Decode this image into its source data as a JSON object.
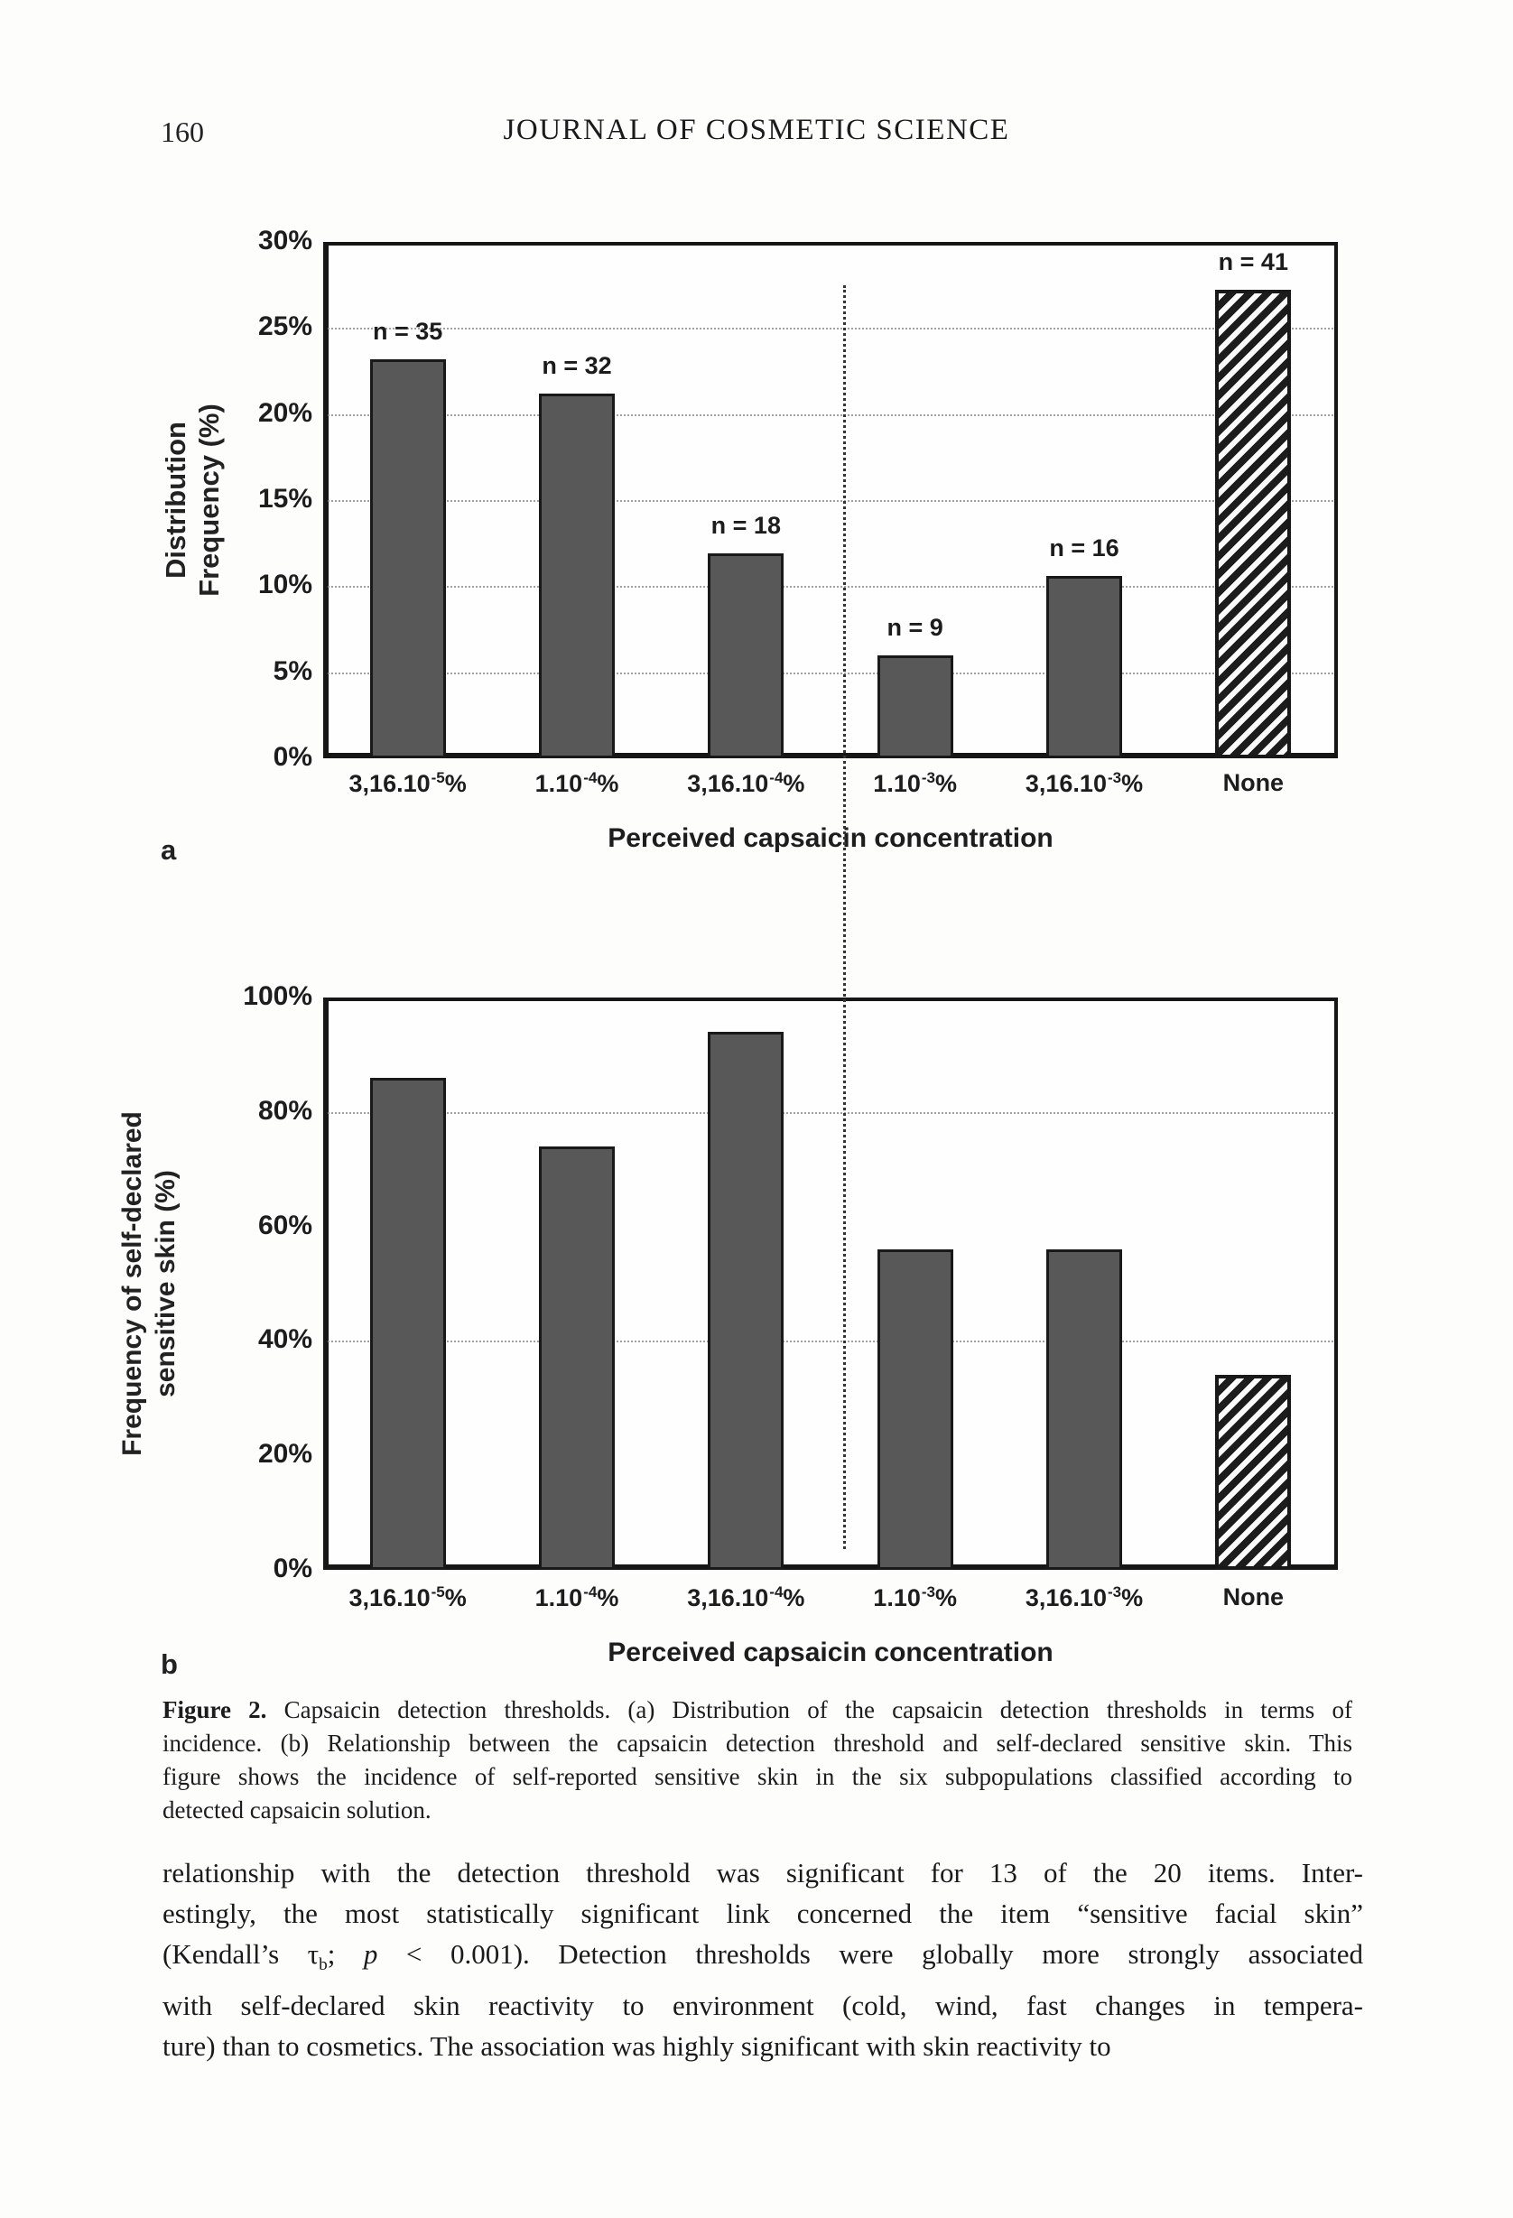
{
  "page": {
    "number": "160",
    "journal_title": "JOURNAL OF COSMETIC SCIENCE"
  },
  "chart_data": [
    {
      "type": "bar",
      "panel_label": "a",
      "ylabel_lines": [
        "Distribution",
        "Frequency (%)"
      ],
      "xlabel": "Perceived capsaicin concentration",
      "ylim": [
        0,
        30
      ],
      "yticks": [
        {
          "v": 30,
          "t": "30%"
        },
        {
          "v": 25,
          "t": "25%"
        },
        {
          "v": 20,
          "t": "20%"
        },
        {
          "v": 15,
          "t": "15%"
        },
        {
          "v": 10,
          "t": "10%"
        },
        {
          "v": 5,
          "t": "5%"
        },
        {
          "v": 0,
          "t": "0%"
        }
      ],
      "gridlines": [
        25,
        20,
        15,
        10,
        5
      ],
      "categories": [
        {
          "base": "3,16.10",
          "sup": "-5",
          "suffix": "%"
        },
        {
          "base": "1.10",
          "sup": "-4",
          "suffix": "%"
        },
        {
          "base": "3,16.10",
          "sup": "-4",
          "suffix": "%"
        },
        {
          "base": "1.10",
          "sup": "-3",
          "suffix": "%"
        },
        {
          "base": "3,16.10",
          "sup": "-3",
          "suffix": "%"
        },
        {
          "base": "None",
          "sup": "",
          "suffix": ""
        }
      ],
      "values": [
        23.2,
        21.2,
        11.9,
        6.0,
        10.6,
        27.2
      ],
      "bar_labels": [
        "n = 35",
        "n = 32",
        "n = 18",
        "n = 9",
        "n = 16",
        "n = 41"
      ],
      "hatched_index": 5,
      "bar_color": "#585858",
      "grid_on": true
    },
    {
      "type": "bar",
      "panel_label": "b",
      "ylabel_lines": [
        "Frequency of self-declared",
        "sensitive skin (%)"
      ],
      "xlabel": "Perceived capsaicin concentration",
      "ylim": [
        0,
        100
      ],
      "yticks": [
        {
          "v": 100,
          "t": "100%"
        },
        {
          "v": 80,
          "t": "80%"
        },
        {
          "v": 60,
          "t": "60%"
        },
        {
          "v": 40,
          "t": "40%"
        },
        {
          "v": 20,
          "t": "20%"
        },
        {
          "v": 0,
          "t": "0%"
        }
      ],
      "gridlines": [
        80,
        40
      ],
      "categories": [
        {
          "base": "3,16.10",
          "sup": "-5",
          "suffix": "%"
        },
        {
          "base": "1.10",
          "sup": "-4",
          "suffix": "%"
        },
        {
          "base": "3,16.10",
          "sup": "-4",
          "suffix": "%"
        },
        {
          "base": "1.10",
          "sup": "-3",
          "suffix": "%"
        },
        {
          "base": "3,16.10",
          "sup": "-3",
          "suffix": "%"
        },
        {
          "base": "None",
          "sup": "",
          "suffix": ""
        }
      ],
      "values": [
        86,
        74,
        94,
        56,
        56,
        34
      ],
      "bar_labels": [],
      "hatched_index": 5,
      "bar_color": "#585858",
      "grid_on": true
    }
  ],
  "caption": {
    "lines": [
      [
        {
          "t": "Figure 2.",
          "s": "b"
        },
        {
          "t": " Capsaicin detection thresholds. (a) Distribution of the capsaicin detection thresholds in terms of",
          "s": ""
        }
      ],
      [
        {
          "t": "incidence. (b) Relationship between the capsaicin detection threshold and self-declared sensitive skin. This",
          "s": ""
        }
      ],
      [
        {
          "t": "figure shows the incidence of self-reported sensitive skin in the six subpopulations classified according to",
          "s": ""
        }
      ],
      [
        {
          "t": "detected capsaicin solution.",
          "s": ""
        }
      ]
    ]
  },
  "body": {
    "lines": [
      [
        {
          "t": "relationship with the detection threshold was significant for 13 of the 20 items. Inter-",
          "s": ""
        }
      ],
      [
        {
          "t": "estingly, the most statistically significant link concerned the item “sensitive facial skin”",
          "s": ""
        }
      ],
      [
        {
          "t": "(Kendall’s τ",
          "s": ""
        },
        {
          "t": "b",
          "s": "sub"
        },
        {
          "t": "; ",
          "s": ""
        },
        {
          "t": "p",
          "s": "i"
        },
        {
          "t": " < 0.001). Detection thresholds were globally more strongly associated",
          "s": ""
        }
      ],
      [
        {
          "t": "with self-declared skin reactivity to environment (cold, wind, fast changes in tempera-",
          "s": ""
        }
      ],
      [
        {
          "t": "ture) than to cosmetics. The association was highly significant with skin reactivity to",
          "s": ""
        }
      ]
    ]
  }
}
